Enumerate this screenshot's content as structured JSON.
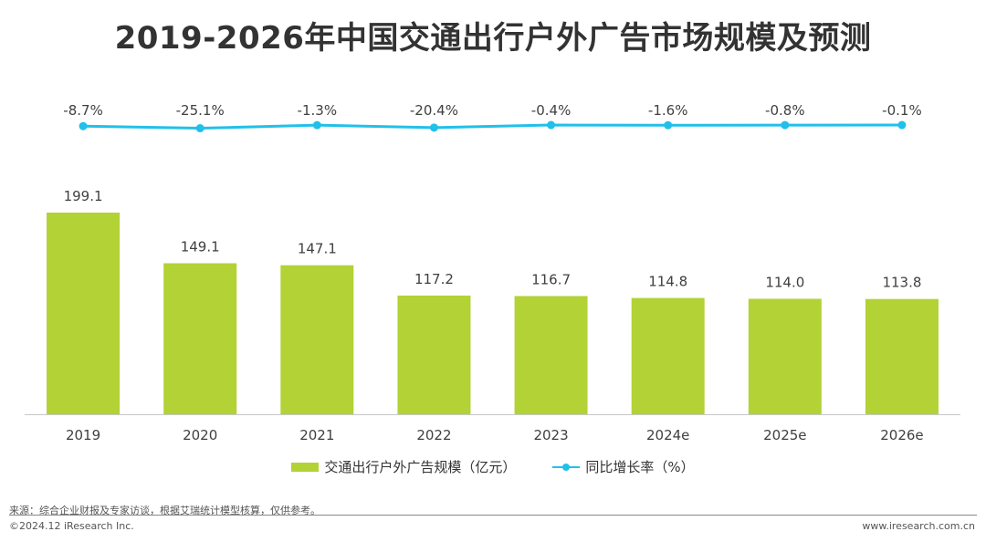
{
  "title": "2019-2026年中国交通出行户外广告市场规模及预测",
  "chart_data": {
    "type": "bar",
    "categories": [
      "2019",
      "2020",
      "2021",
      "2022",
      "2023",
      "2024e",
      "2025e",
      "2026e"
    ],
    "series": [
      {
        "name": "交通出行户外广告规模（亿元）",
        "kind": "bar",
        "color": "#b2d235",
        "values": [
          199.1,
          149.1,
          147.1,
          117.2,
          116.7,
          114.8,
          114.0,
          113.8
        ],
        "labels": [
          "199.1",
          "149.1",
          "147.1",
          "117.2",
          "116.7",
          "114.8",
          "114.0",
          "113.8"
        ]
      },
      {
        "name": "同比增长率（%）",
        "kind": "line",
        "color": "#21c0ea",
        "values": [
          -8.7,
          -25.1,
          -1.3,
          -20.4,
          -0.4,
          -1.6,
          -0.8,
          -0.1
        ],
        "labels": [
          "-8.7%",
          "-25.1%",
          "-1.3%",
          "-20.4%",
          "-0.4%",
          "-1.6%",
          "-0.8%",
          "-0.1%"
        ]
      }
    ],
    "ylim": [
      0,
      220
    ],
    "legend_position": "bottom-center"
  },
  "legend": {
    "bar_label": "交通出行户外广告规模（亿元）",
    "line_label": "同比增长率（%）"
  },
  "footer": {
    "source": "来源：综合企业财报及专家访谈，根据艾瑞统计模型核算，仅供参考。",
    "copyright": "©2024.12 iResearch Inc.",
    "website": "www.iresearch.com.cn"
  }
}
